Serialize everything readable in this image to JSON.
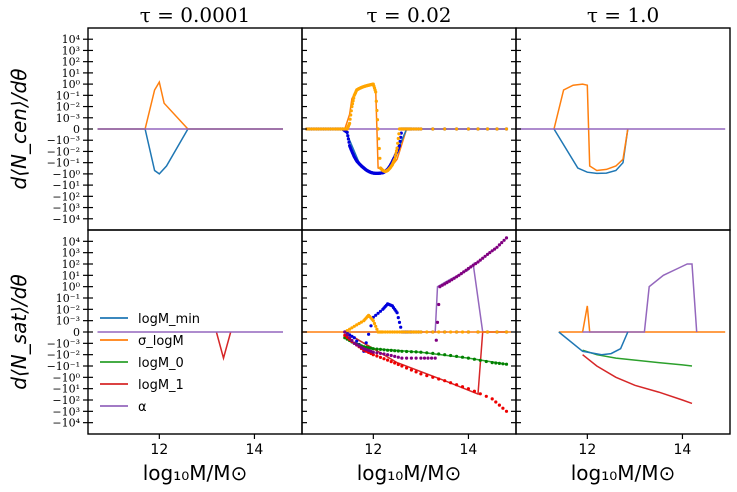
{
  "figure": {
    "ylabel_top": "d⟨N_cen⟩/dθ",
    "ylabel_bottom": "d⟨N_sat⟩/dθ",
    "xlabel": "log₁₀M/M⊙",
    "col_titles": [
      "τ = 0.0001",
      "τ = 0.02",
      "τ = 1.0"
    ]
  },
  "legend": {
    "items": [
      {
        "label": "logM_min",
        "color": "#1f77b4"
      },
      {
        "label": "σ_logM",
        "color": "#ff7f0e"
      },
      {
        "label": "logM_0",
        "color": "#2ca02c"
      },
      {
        "label": "logM_1",
        "color": "#d62728"
      },
      {
        "label": "α",
        "color": "#9467bd"
      }
    ]
  },
  "chart_data": {
    "type": "line",
    "x_range": [
      10.5,
      15.0
    ],
    "x_ticks": [
      "12",
      "14"
    ],
    "y_scale": "symlog",
    "y_linthresh": 0.001,
    "y_range": [
      -100000,
      100000
    ],
    "y_tick_labels": [
      "10⁴",
      "10³",
      "10²",
      "10¹",
      "10⁰",
      "10⁻¹",
      "10⁻²",
      "10⁻³",
      "0",
      "−10⁻³",
      "−10⁻²",
      "−10⁻¹",
      "−10⁰",
      "−10¹",
      "−10²",
      "−10³",
      "−10⁴"
    ],
    "colors": {
      "logMmin": "#1f77b4",
      "sigma": "#ff7f0e",
      "logM0": "#2ca02c",
      "logM1": "#d62728",
      "alpha": "#9467bd",
      "dot_logMmin": "#0000dd",
      "dot_sigma": "#ffa500",
      "dot_logM0": "#008000",
      "dot_logM1": "#ee0000",
      "dot_alpha": "#800080"
    },
    "panels": [
      {
        "row": 0,
        "col": 0,
        "lines": [
          {
            "key": "logMmin",
            "x": [
              10.7,
              11.5,
              11.7,
              11.9,
              12.0,
              12.15,
              12.6,
              14.6
            ],
            "y": [
              0,
              0,
              0,
              -0.5,
              -1.0,
              -0.2,
              0,
              0
            ]
          },
          {
            "key": "sigma",
            "x": [
              10.7,
              11.5,
              11.7,
              11.9,
              12.0,
              12.1,
              12.6,
              14.6
            ],
            "y": [
              0,
              0,
              0,
              0.3,
              1.5,
              0.02,
              0,
              0
            ]
          },
          {
            "key": "alpha",
            "x": [
              10.7,
              14.6
            ],
            "y": [
              0,
              0
            ]
          }
        ]
      },
      {
        "row": 0,
        "col": 1,
        "dots": [
          {
            "key": "dot_logMmin",
            "x": [
              10.6,
              10.8,
              11.0,
              11.2,
              11.35,
              11.45,
              11.5,
              11.55,
              11.6,
              11.65,
              11.7,
              11.75,
              11.8,
              11.85,
              11.9,
              11.95,
              12.0,
              12.05,
              12.1,
              12.15,
              12.2,
              12.25,
              12.3,
              12.35,
              12.4,
              12.45,
              12.5,
              12.55,
              12.6,
              12.7,
              12.8,
              13.0,
              14.0,
              14.8
            ],
            "y": [
              0,
              0,
              0,
              0,
              0,
              -0.0003,
              -0.003,
              -0.01,
              -0.03,
              -0.07,
              -0.12,
              -0.2,
              -0.3,
              -0.45,
              -0.6,
              -0.75,
              -0.85,
              -0.9,
              -0.9,
              -0.85,
              -0.8,
              -0.6,
              -0.4,
              -0.2,
              -0.08,
              -0.03,
              -0.01,
              -0.003,
              0,
              0,
              0,
              0,
              0,
              0
            ]
          },
          {
            "key": "dot_sigma",
            "x": [
              10.6,
              10.8,
              11.0,
              11.2,
              11.35,
              11.45,
              11.5,
              11.55,
              11.6,
              11.65,
              11.7,
              11.75,
              11.8,
              11.85,
              11.9,
              11.95,
              12.0,
              12.05,
              12.1,
              12.15,
              12.2,
              12.25,
              12.3,
              12.35,
              12.4,
              12.45,
              12.5,
              12.55,
              12.6,
              12.7,
              12.8,
              13.0,
              14.0,
              14.8
            ],
            "y": [
              0,
              0,
              0,
              0,
              0,
              0,
              0.0005,
              0.01,
              0.1,
              0.3,
              0.4,
              0.5,
              0.6,
              0.7,
              0.8,
              0.9,
              1.0,
              0.2,
              0,
              -0.3,
              -0.5,
              -0.6,
              -0.5,
              -0.3,
              -0.15,
              -0.05,
              -0.005,
              0,
              0,
              0,
              0,
              0,
              0,
              0
            ]
          }
        ],
        "lines": [
          {
            "key": "sigma",
            "x": [
              10.6,
              11.2,
              11.4,
              11.5,
              11.55,
              11.65,
              11.8,
              11.95,
              12.0,
              12.05,
              12.1,
              12.3,
              12.5,
              12.7,
              14.8
            ],
            "y": [
              0,
              0,
              0,
              0.002,
              0.05,
              0.3,
              0.6,
              0.9,
              1.0,
              0.3,
              -0.3,
              -0.6,
              -0.05,
              0,
              0
            ]
          },
          {
            "key": "logMmin",
            "x": [
              10.6,
              11.4,
              11.5,
              11.7,
              11.9,
              12.1,
              12.3,
              12.5,
              12.7,
              14.8
            ],
            "y": [
              0,
              0,
              -0.001,
              -0.1,
              -0.6,
              -0.9,
              -0.4,
              -0.01,
              0,
              0
            ]
          },
          {
            "key": "alpha",
            "x": [
              10.6,
              14.8
            ],
            "y": [
              0,
              0
            ]
          }
        ]
      },
      {
        "row": 0,
        "col": 2,
        "lines": [
          {
            "key": "logMmin",
            "x": [
              11.3,
              11.8,
              12.0,
              12.2,
              12.4,
              12.6,
              12.75,
              12.85
            ],
            "y": [
              0,
              -0.3,
              -0.7,
              -0.9,
              -0.85,
              -0.5,
              -0.1,
              0
            ]
          },
          {
            "key": "sigma",
            "x": [
              11.3,
              11.5,
              11.7,
              11.9,
              12.0,
              12.05,
              12.2,
              12.4,
              12.6,
              12.75,
              12.85
            ],
            "y": [
              0,
              0.3,
              0.8,
              1.0,
              0.8,
              -0.2,
              -0.5,
              -0.4,
              -0.2,
              -0.05,
              0
            ]
          },
          {
            "key": "alpha",
            "x": [
              10.5,
              14.9
            ],
            "y": [
              0,
              0
            ]
          }
        ]
      },
      {
        "row": 1,
        "col": 0,
        "lines": [
          {
            "key": "logM1",
            "x": [
              13.2,
              13.35,
              13.5
            ],
            "y": [
              0,
              -0.02,
              0
            ]
          },
          {
            "key": "alpha",
            "x": [
              10.7,
              14.6
            ],
            "y": [
              0,
              0
            ]
          }
        ]
      },
      {
        "row": 1,
        "col": 1,
        "dots": [
          {
            "key": "dot_logMmin",
            "x": [
              11.4,
              11.6,
              11.8,
              12.0,
              12.2,
              12.3,
              12.4,
              12.5,
              12.6,
              12.7,
              12.8,
              13.0,
              14.0,
              14.8
            ],
            "y": [
              0,
              -0.0005,
              -0.005,
              0.002,
              0.01,
              0.03,
              0.02,
              0.005,
              0,
              0,
              0,
              0,
              0,
              0
            ]
          },
          {
            "key": "dot_sigma",
            "x": [
              11.4,
              11.6,
              11.8,
              11.9,
              12.0,
              12.1,
              12.2,
              12.4,
              12.6,
              12.8,
              13.0,
              13.5,
              14.0,
              14.8
            ],
            "y": [
              0,
              0.0005,
              0.001,
              0.003,
              0.001,
              0,
              0,
              0,
              0,
              0,
              0,
              0,
              0,
              0
            ]
          },
          {
            "key": "dot_logM0",
            "x": [
              11.4,
              11.6,
              11.8,
              12.0,
              12.3,
              12.6,
              13.0,
              13.5,
              14.0,
              14.5,
              14.8
            ],
            "y": [
              -0.0005,
              -0.001,
              -0.002,
              -0.003,
              -0.004,
              -0.005,
              -0.006,
              -0.01,
              -0.02,
              -0.05,
              -0.07
            ]
          },
          {
            "key": "dot_logM1",
            "x": [
              11.4,
              11.6,
              11.8,
              12.0,
              12.3,
              12.6,
              13.0,
              13.5,
              14.0,
              14.5,
              14.8
            ],
            "y": [
              -0.0003,
              -0.001,
              -0.004,
              -0.01,
              -0.03,
              -0.1,
              -0.5,
              -2,
              -10,
              -80,
              -1000
            ]
          },
          {
            "key": "dot_alpha",
            "x": [
              11.4,
              11.6,
              11.8,
              12.0,
              12.3,
              12.6,
              13.0,
              13.3,
              13.4,
              13.6,
              13.8,
              14.0,
              14.2,
              14.4,
              14.6,
              14.8
            ],
            "y": [
              0,
              -0.001,
              -0.003,
              -0.006,
              -0.01,
              -0.02,
              -0.02,
              -0.02,
              1,
              3,
              10,
              40,
              150,
              700,
              3000,
              20000
            ]
          }
        ],
        "lines": [
          {
            "key": "alpha",
            "x": [
              11.4,
              12.0,
              13.3,
              13.35,
              13.6,
              14.0,
              14.1,
              14.3,
              14.8
            ],
            "y": [
              0,
              0,
              0,
              1,
              4,
              30,
              100,
              0,
              0
            ]
          },
          {
            "key": "logM0",
            "x": [
              11.4,
              12.0,
              13.0,
              14.0,
              14.8
            ],
            "y": [
              0,
              -0.003,
              -0.006,
              -0.02,
              -0.07
            ]
          },
          {
            "key": "logM1",
            "x": [
              11.4,
              12.5,
              13.5,
              14.2,
              14.3,
              14.8
            ],
            "y": [
              0,
              -0.05,
              -2,
              -30,
              0,
              0
            ]
          },
          {
            "key": "sigma",
            "x": [
              10.5,
              14.9
            ],
            "y": [
              0,
              0
            ]
          }
        ]
      },
      {
        "row": 1,
        "col": 2,
        "lines": [
          {
            "key": "sigma",
            "x": [
              11.4,
              11.9,
              12.0,
              12.05,
              12.2,
              12.4,
              12.6,
              12.85,
              14.9
            ],
            "y": [
              0,
              0,
              0.02,
              0,
              0,
              0,
              0,
              0,
              0
            ]
          },
          {
            "key": "logM0",
            "x": [
              11.9,
              12.2,
              12.6,
              13.0,
              13.5,
              14.0,
              14.2
            ],
            "y": [
              -0.004,
              -0.01,
              -0.02,
              -0.03,
              -0.05,
              -0.08,
              -0.1
            ]
          },
          {
            "key": "logM1",
            "x": [
              11.9,
              12.2,
              12.6,
              13.0,
              13.5,
              14.0,
              14.2
            ],
            "y": [
              -0.01,
              -0.1,
              -1,
              -5,
              -20,
              -100,
              -200
            ]
          },
          {
            "key": "alpha",
            "x": [
              11.9,
              12.5,
              13.2,
              13.3,
              13.6,
              13.9,
              14.1,
              14.2,
              14.3
            ],
            "y": [
              0,
              0,
              0,
              1,
              10,
              40,
              100,
              100,
              0
            ]
          },
          {
            "key": "logMmin",
            "x": [
              11.4,
              11.9,
              12.3,
              12.5,
              12.7,
              12.85
            ],
            "y": [
              0,
              -0.005,
              -0.01,
              -0.008,
              -0.003,
              0
            ]
          }
        ]
      }
    ]
  }
}
